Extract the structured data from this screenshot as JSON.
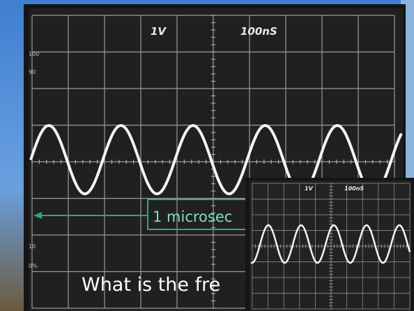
{
  "screen": {
    "volts_per_div": "1V",
    "time_per_div": "100nS",
    "scale_labels": [
      "100",
      "90",
      "10",
      "0%"
    ]
  },
  "annotation": {
    "label": "1 microsec"
  },
  "question": "What is the fre",
  "inset": {
    "volts_per_div": "1V",
    "time_per_div": "100nS"
  }
}
